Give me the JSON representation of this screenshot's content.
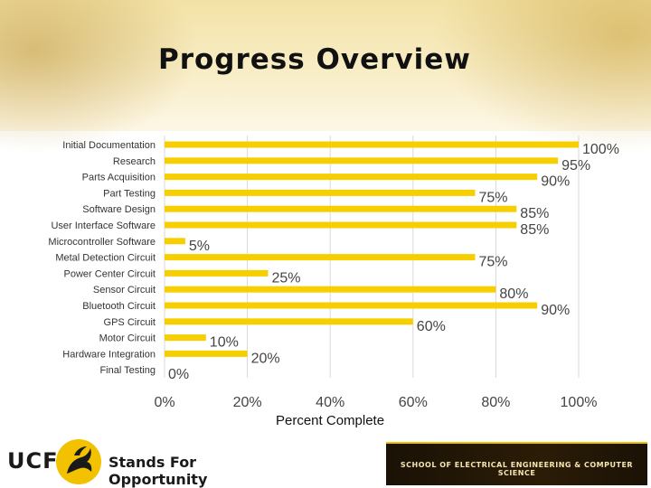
{
  "slide": {
    "title": "Progress Overview"
  },
  "chart_data": {
    "type": "bar",
    "orientation": "horizontal",
    "categories": [
      "Initial Documentation",
      "Research",
      "Parts Acquisition",
      "Part Testing",
      "Software Design",
      "User Interface Software",
      "Microcontroller Software",
      "Metal Detection Circuit",
      "Power Center Circuit",
      "Sensor Circuit",
      "Bluetooth Circuit",
      "GPS Circuit",
      "Motor Circuit",
      "Hardware Integration",
      "Final Testing"
    ],
    "values": [
      100,
      95,
      90,
      75,
      85,
      85,
      5,
      75,
      25,
      80,
      90,
      60,
      10,
      20,
      0
    ],
    "value_labels": [
      "100%",
      "95%",
      "90%",
      "75%",
      "85%",
      "85%",
      "5%",
      "75%",
      "25%",
      "80%",
      "90%",
      "60%",
      "10%",
      "20%",
      "0%"
    ],
    "x_ticks": [
      0,
      20,
      40,
      60,
      80,
      100
    ],
    "x_tick_labels": [
      "0%",
      "20%",
      "40%",
      "60%",
      "80%",
      "100%"
    ],
    "xlim": [
      0,
      100
    ],
    "xlabel": "Percent Complete",
    "grid": "vertical",
    "bar_color": "#f7cf00",
    "grid_color": "#d9d9d9"
  },
  "footer": {
    "logo_text": "UCF",
    "logo_icon": "pegasus-icon",
    "tagline": "Stands For Opportunity",
    "school": "SCHOOL OF ELECTRICAL ENGINEERING & COMPUTER SCIENCE",
    "accent_color": "#f2c200"
  }
}
